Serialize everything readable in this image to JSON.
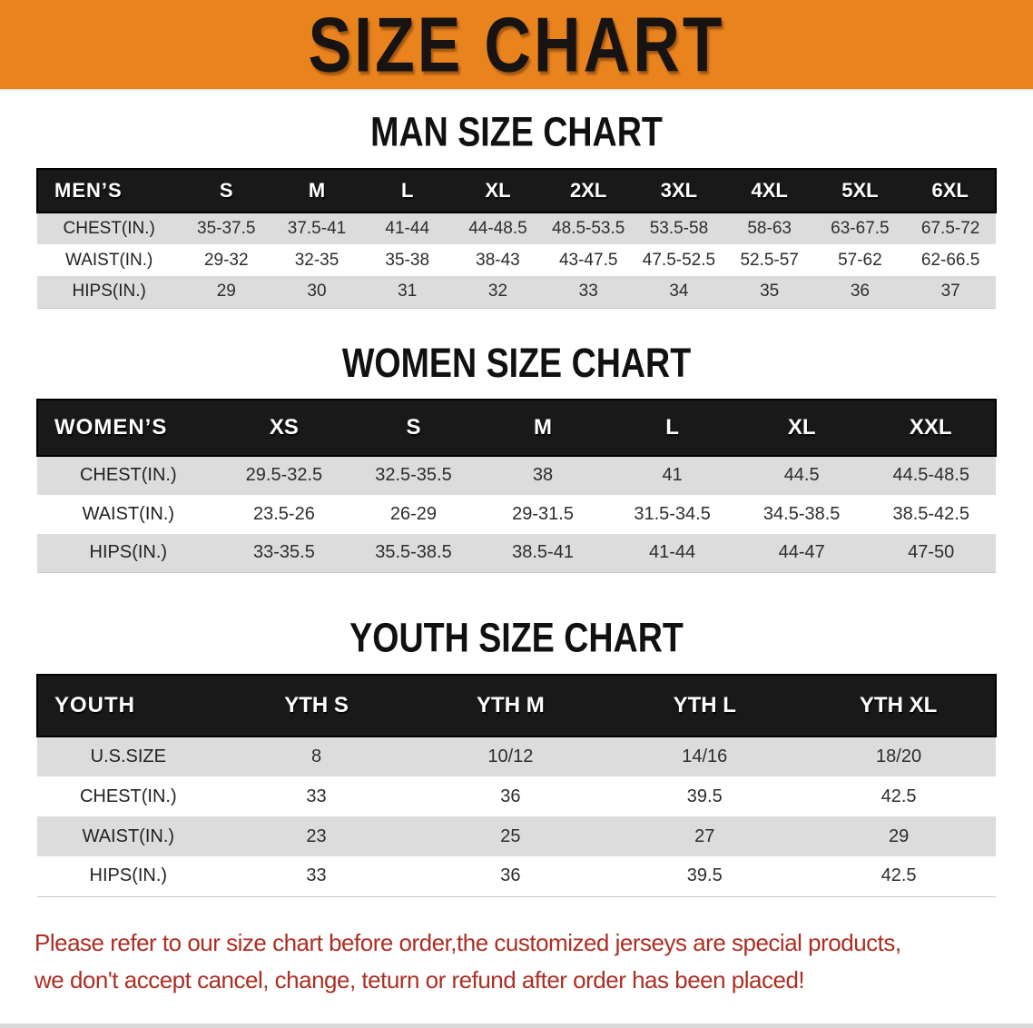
{
  "banner": {
    "title": "SIZE CHART",
    "bg_color": "#E8831E",
    "text_color": "#161312"
  },
  "colors": {
    "table_header_bg": "#191919",
    "table_header_text": "#ffffff",
    "row_stripe": "#dcdcdc",
    "row_plain": "#ffffff",
    "disclaimer_text": "#AD2E23"
  },
  "sections": [
    {
      "heading": "MAN SIZE CHART",
      "header_label": "MEN’S",
      "columns": [
        "S",
        "M",
        "L",
        "XL",
        "2XL",
        "3XL",
        "4XL",
        "5XL",
        "6XL"
      ],
      "rows": [
        {
          "label": "CHEST(IN.)",
          "values": [
            "35-37.5",
            "37.5-41",
            "41-44",
            "44-48.5",
            "48.5-53.5",
            "53.5-58",
            "58-63",
            "63-67.5",
            "67.5-72"
          ]
        },
        {
          "label": "WAIST(IN.)",
          "values": [
            "29-32",
            "32-35",
            "35-38",
            "38-43",
            "43-47.5",
            "47.5-52.5",
            "52.5-57",
            "57-62",
            "62-66.5"
          ]
        },
        {
          "label": "HIPS(IN.)",
          "values": [
            "29",
            "30",
            "31",
            "32",
            "33",
            "34",
            "35",
            "36",
            "37"
          ]
        }
      ]
    },
    {
      "heading": "WOMEN SIZE CHART",
      "header_label": "WOMEN’S",
      "columns": [
        "XS",
        "S",
        "M",
        "L",
        "XL",
        "XXL"
      ],
      "rows": [
        {
          "label": "CHEST(IN.)",
          "values": [
            "29.5-32.5",
            "32.5-35.5",
            "38",
            "41",
            "44.5",
            "44.5-48.5"
          ]
        },
        {
          "label": "WAIST(IN.)",
          "values": [
            "23.5-26",
            "26-29",
            "29-31.5",
            "31.5-34.5",
            "34.5-38.5",
            "38.5-42.5"
          ]
        },
        {
          "label": "HIPS(IN.)",
          "values": [
            "33-35.5",
            "35.5-38.5",
            "38.5-41",
            "41-44",
            "44-47",
            "47-50"
          ]
        }
      ]
    },
    {
      "heading": "YOUTH SIZE CHART",
      "header_label": "YOUTH",
      "columns": [
        "YTH S",
        "YTH M",
        "YTH L",
        "YTH XL"
      ],
      "rows": [
        {
          "label": "U.S.SIZE",
          "values": [
            "8",
            "10/12",
            "14/16",
            "18/20"
          ]
        },
        {
          "label": "CHEST(IN.)",
          "values": [
            "33",
            "36",
            "39.5",
            "42.5"
          ]
        },
        {
          "label": "WAIST(IN.)",
          "values": [
            "23",
            "25",
            "27",
            "29"
          ]
        },
        {
          "label": "HIPS(IN.)",
          "values": [
            "33",
            "36",
            "39.5",
            "42.5"
          ]
        }
      ]
    }
  ],
  "disclaimer": {
    "line1": "Please refer to our size chart before order,the customized jerseys are special products,",
    "line2": "we don't accept cancel, change, teturn or refund after order has been placed!"
  }
}
